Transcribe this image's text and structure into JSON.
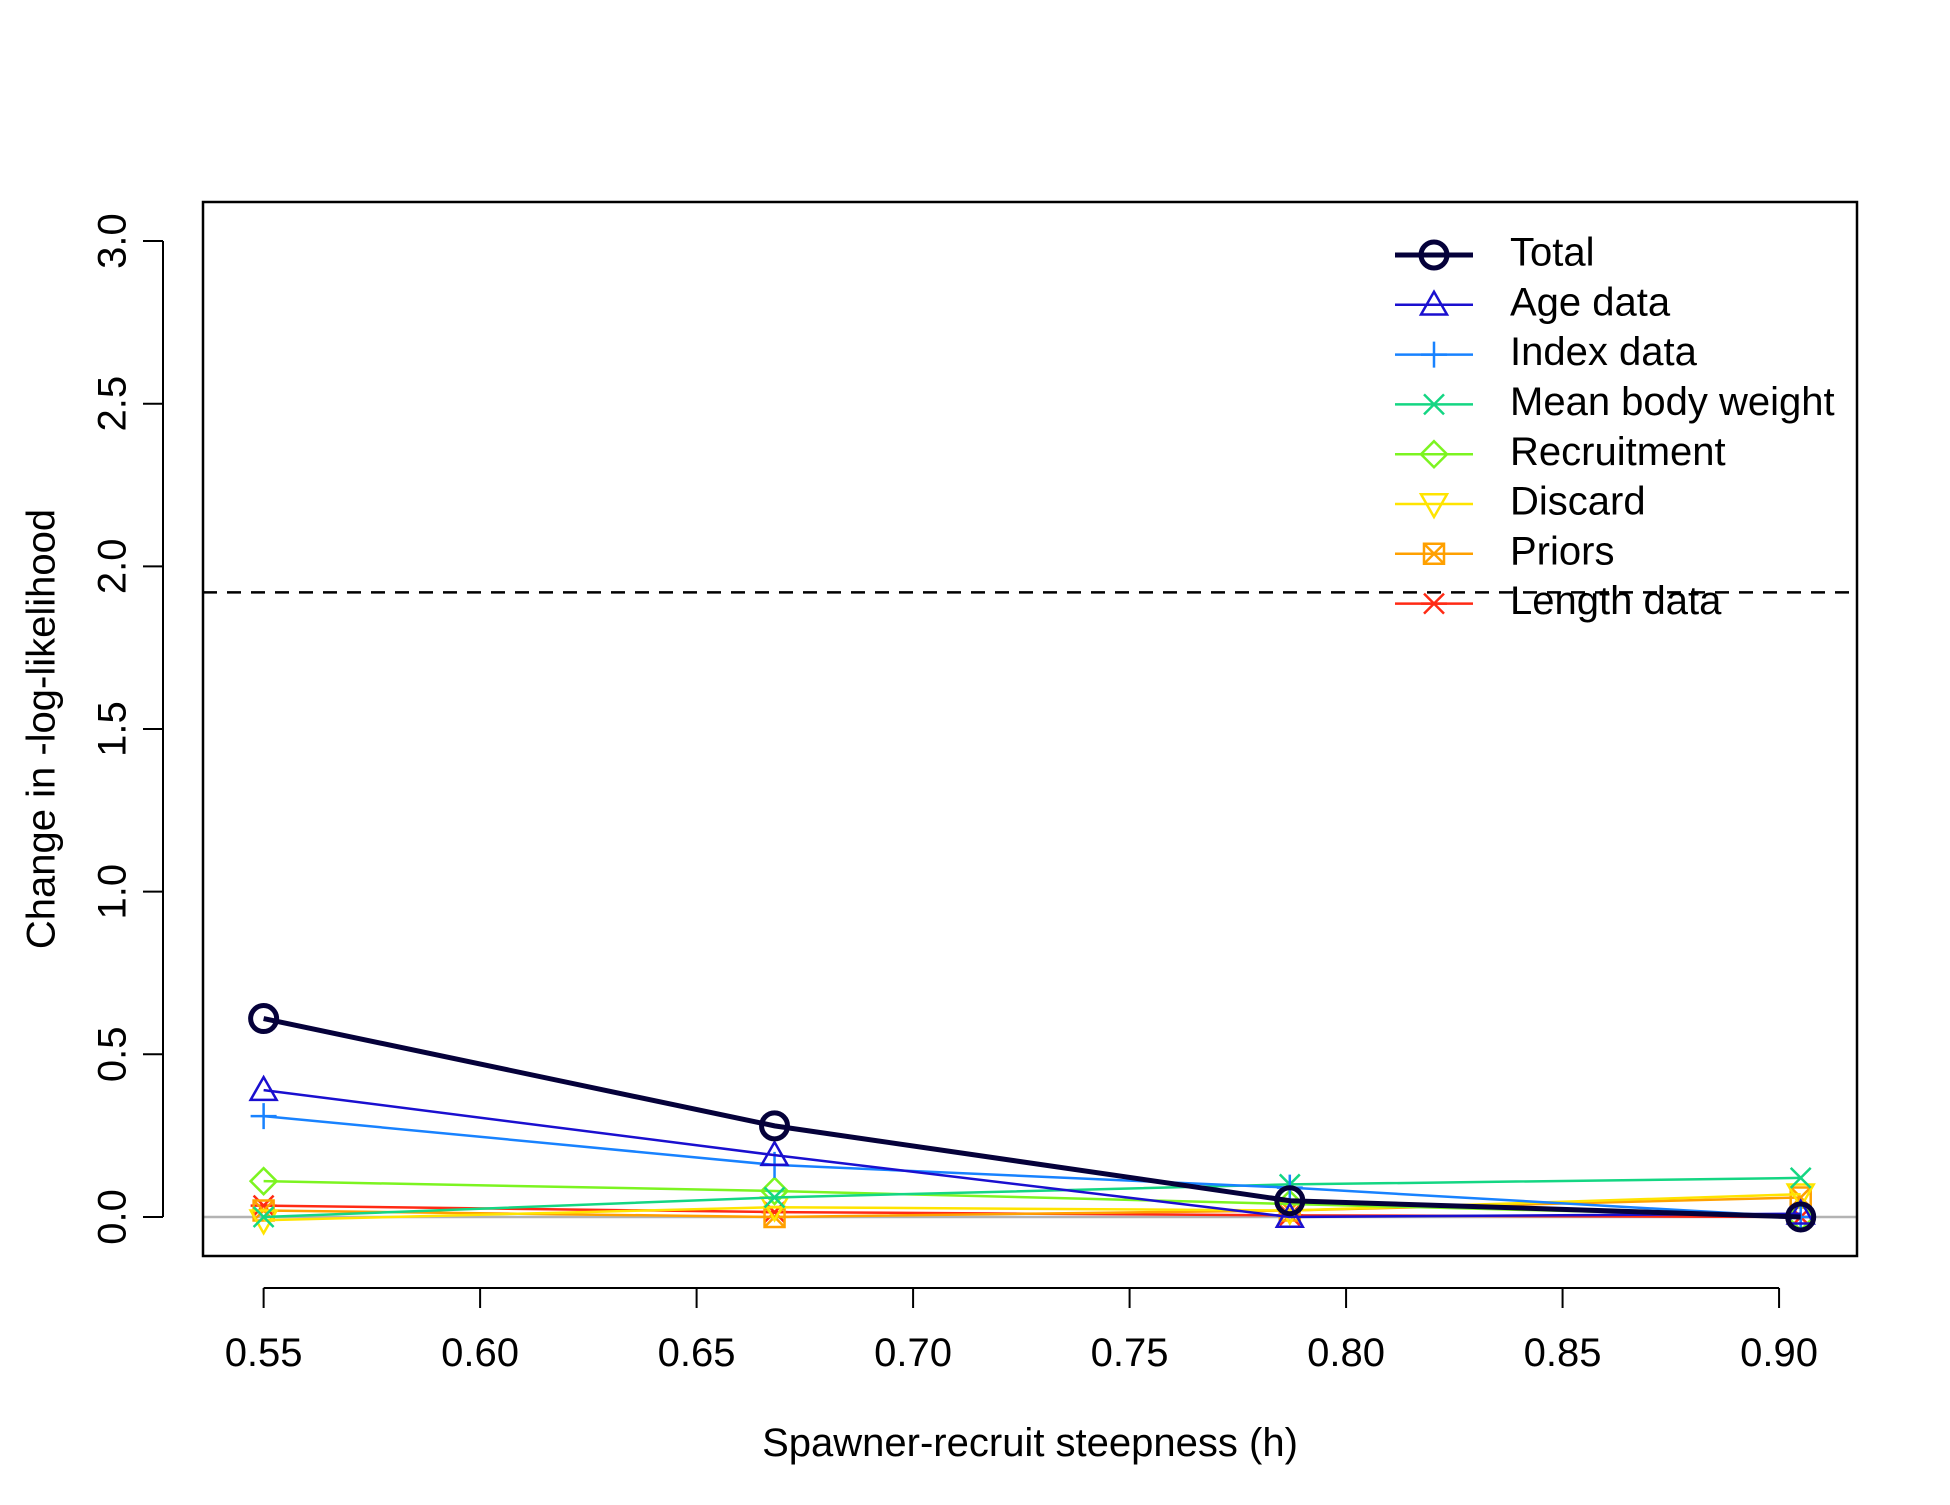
{
  "chart_data": {
    "type": "line",
    "title": "",
    "xlabel": "Spawner-recruit steepness (h)",
    "ylabel": "Change in -log-likelihood",
    "xlim": [
      0.536,
      0.918
    ],
    "ylim": [
      -0.12,
      3.12
    ],
    "xticks": [
      0.55,
      0.6,
      0.65,
      0.7,
      0.75,
      0.8,
      0.85,
      0.9
    ],
    "xtick_labels": [
      "0.55",
      "0.60",
      "0.65",
      "0.70",
      "0.75",
      "0.80",
      "0.85",
      "0.90"
    ],
    "yticks": [
      0.0,
      0.5,
      1.0,
      1.5,
      2.0,
      2.5,
      3.0
    ],
    "ytick_labels": [
      "0.0",
      "0.5",
      "1.0",
      "1.5",
      "2.0",
      "2.5",
      "3.0"
    ],
    "x": [
      0.55,
      0.668,
      0.787,
      0.905
    ],
    "reference_lines": [
      {
        "y": 1.92,
        "style": "dashed",
        "color": "#000000"
      },
      {
        "y": 0.0,
        "style": "solid",
        "color": "#b3b3b3"
      }
    ],
    "legend_position": "top-right",
    "grid": false,
    "series": [
      {
        "name": "Total",
        "values": [
          0.61,
          0.28,
          0.05,
          0.0
        ],
        "color": "#05013a",
        "marker": "circle",
        "bold": true
      },
      {
        "name": "Age data",
        "values": [
          0.39,
          0.19,
          0.0,
          0.01
        ],
        "color": "#1a0fcf",
        "marker": "triangle-up",
        "bold": false
      },
      {
        "name": "Index data",
        "values": [
          0.31,
          0.16,
          0.09,
          0.0
        ],
        "color": "#1882ff",
        "marker": "plus",
        "bold": false
      },
      {
        "name": "Mean body weight",
        "values": [
          0.0,
          0.06,
          0.1,
          0.12
        ],
        "color": "#14d683",
        "marker": "cross",
        "bold": false
      },
      {
        "name": "Recruitment",
        "values": [
          0.11,
          0.08,
          0.04,
          0.0
        ],
        "color": "#7cf421",
        "marker": "diamond",
        "bold": false
      },
      {
        "name": "Discard",
        "values": [
          -0.01,
          0.03,
          0.02,
          0.07
        ],
        "color": "#ffe400",
        "marker": "triangle-down",
        "bold": false
      },
      {
        "name": "Priors",
        "values": [
          0.02,
          0.0,
          0.02,
          0.06
        ],
        "color": "#ffa000",
        "marker": "square-x",
        "bold": false
      },
      {
        "name": "Length data",
        "values": [
          0.035,
          0.015,
          0.005,
          0.0
        ],
        "color": "#ff2a14",
        "marker": "asterisk",
        "bold": false
      }
    ]
  }
}
